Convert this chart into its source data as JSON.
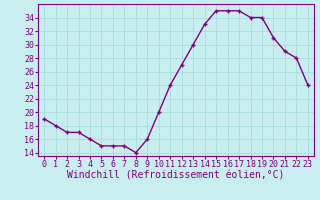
{
  "x": [
    0,
    1,
    2,
    3,
    4,
    5,
    6,
    7,
    8,
    9,
    10,
    11,
    12,
    13,
    14,
    15,
    16,
    17,
    18,
    19,
    20,
    21,
    22,
    23
  ],
  "y": [
    19,
    18,
    17,
    17,
    16,
    15,
    15,
    15,
    14,
    16,
    20,
    24,
    27,
    30,
    33,
    35,
    35,
    35,
    34,
    34,
    31,
    29,
    28,
    24
  ],
  "line_color": "#800080",
  "marker": "+",
  "marker_size": 3.5,
  "marker_edge_width": 1.0,
  "bg_color": "#c8eef0",
  "grid_color": "#aadddd",
  "xlabel": "Windchill (Refroidissement éolien,°C)",
  "xlabel_fontsize": 7,
  "ylim": [
    13.5,
    36
  ],
  "xlim": [
    -0.5,
    23.5
  ],
  "yticks": [
    14,
    16,
    18,
    20,
    22,
    24,
    26,
    28,
    30,
    32,
    34
  ],
  "xtick_labels": [
    "0",
    "1",
    "2",
    "3",
    "4",
    "5",
    "6",
    "7",
    "8",
    "9",
    "10",
    "11",
    "12",
    "13",
    "14",
    "15",
    "16",
    "17",
    "18",
    "19",
    "20",
    "21",
    "22",
    "23"
  ],
  "tick_fontsize": 6,
  "line_width": 1.0,
  "spine_color": "#800080"
}
